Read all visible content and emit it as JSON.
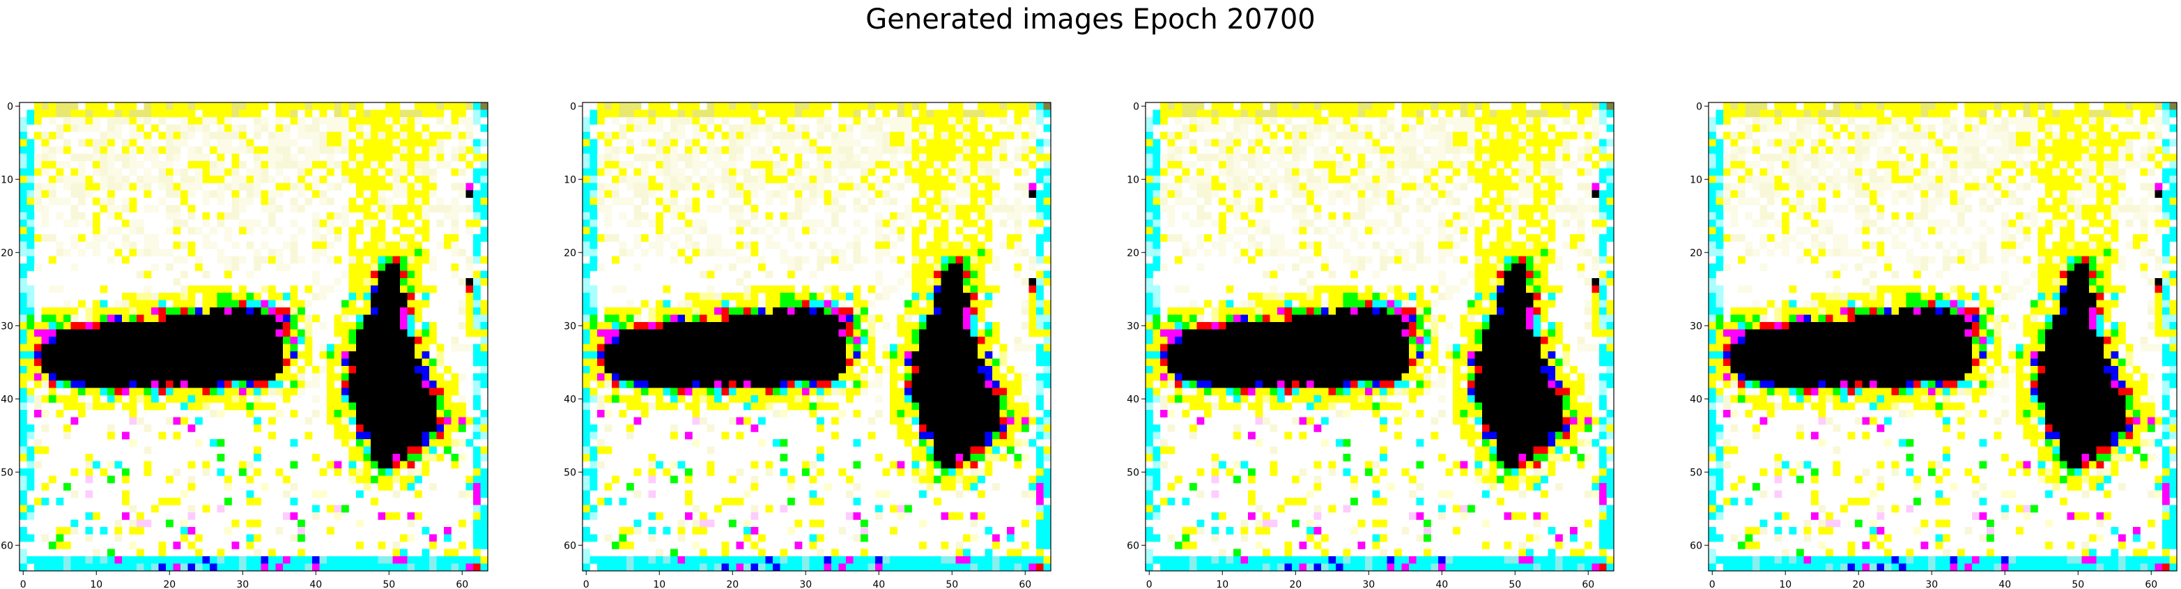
{
  "figure": {
    "title": "Generated images Epoch 20700"
  },
  "axes": {
    "x_ticks": [
      "0",
      "10",
      "20",
      "30",
      "40",
      "50",
      "60"
    ],
    "y_ticks": [
      "0",
      "10",
      "20",
      "30",
      "40",
      "50",
      "60"
    ],
    "xlim": [
      -0.5,
      63.5
    ],
    "ylim": [
      63.5,
      -0.5
    ],
    "tick_values": [
      0,
      10,
      20,
      30,
      40,
      50,
      60
    ]
  },
  "panels": [
    {
      "name": "generated-image-1"
    },
    {
      "name": "generated-image-2"
    },
    {
      "name": "generated-image-3"
    },
    {
      "name": "generated-image-4"
    }
  ],
  "colors": {
    "background": "#ffffff",
    "haze": "#f8f8d8",
    "yellow": "#ffff00",
    "cyan": "#00ffff",
    "magenta": "#ff00ff",
    "green": "#00ff00",
    "red": "#ff0000",
    "blue": "#0000ff",
    "black": "#000000"
  }
}
